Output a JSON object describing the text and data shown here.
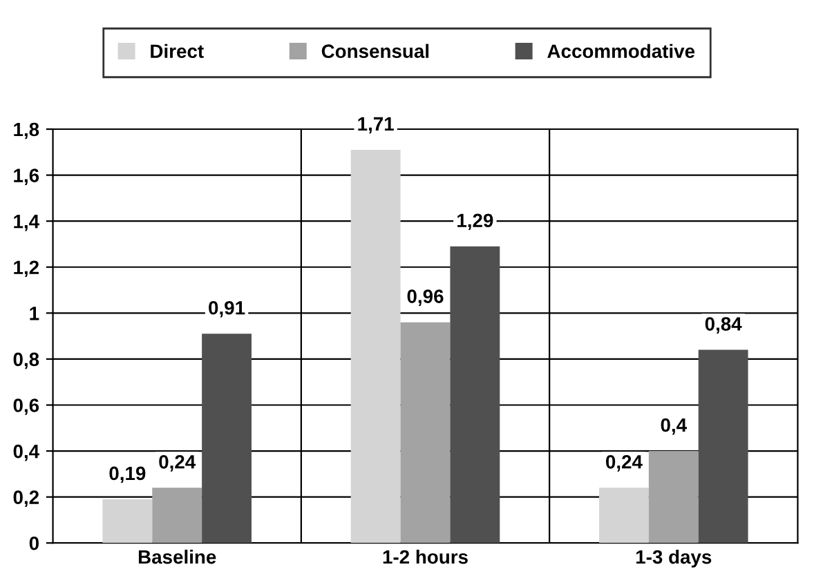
{
  "chart_data": {
    "type": "bar",
    "categories": [
      "Baseline",
      "1-2 hours",
      "1-3 days"
    ],
    "series": [
      {
        "name": "Direct",
        "color": "#d4d4d4",
        "values": [
          0.19,
          1.71,
          0.24
        ],
        "value_labels": [
          "0,19",
          "1,71",
          "0,24"
        ]
      },
      {
        "name": "Consensual",
        "color": "#a3a3a3",
        "values": [
          0.24,
          0.96,
          0.4
        ],
        "value_labels": [
          "0,24",
          "0,96",
          "0,4"
        ]
      },
      {
        "name": "Accommodative",
        "color": "#505050",
        "values": [
          0.91,
          1.29,
          0.84
        ],
        "value_labels": [
          "0,91",
          "1,29",
          "0,84"
        ]
      }
    ],
    "ylim": [
      0,
      1.8
    ],
    "yticks": [
      0,
      {
        "value": 0.2,
        "label": "0,2"
      },
      {
        "value": 0.4,
        "label": "0,4"
      },
      {
        "value": 0.6,
        "label": "0,6"
      },
      {
        "value": 0.8,
        "label": "0,8"
      },
      1,
      {
        "value": 1.2,
        "label": "1,2"
      },
      {
        "value": 1.4,
        "label": "1,4"
      },
      {
        "value": 1.6,
        "label": "1,6"
      },
      {
        "value": 1.8,
        "label": "1,8"
      }
    ],
    "grid": true,
    "legend": "top"
  }
}
